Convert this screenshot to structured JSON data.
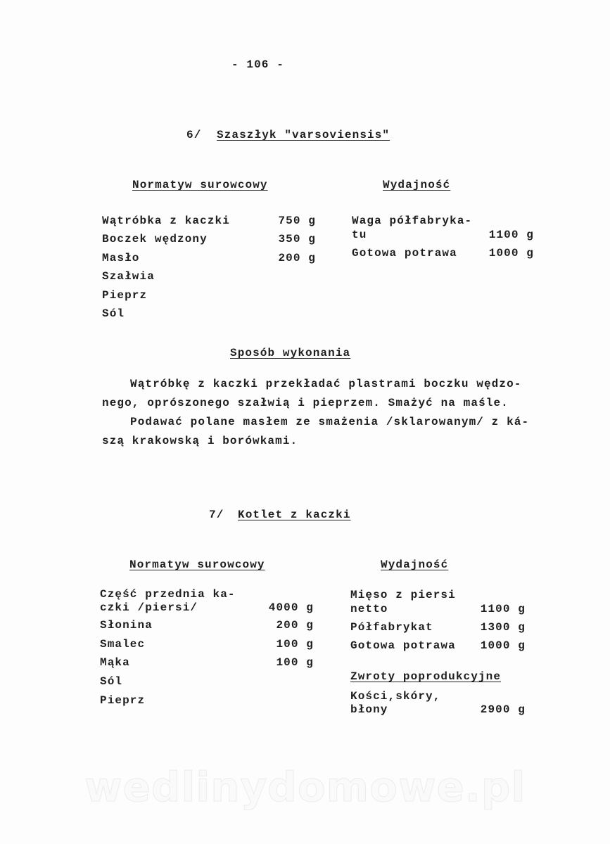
{
  "page_number": "- 106 -",
  "recipe1": {
    "number": "6/",
    "title": "Szaszłyk \"varsoviensis\"",
    "ingredients_header": "Normatyw surowcowy",
    "yield_header": "Wydajność",
    "ingredients": [
      {
        "name": "Wątróbka z kaczki",
        "amount": "750 g"
      },
      {
        "name": "Boczek wędzony",
        "amount": "350 g"
      },
      {
        "name": "Masło",
        "amount": "200 g"
      },
      {
        "name": "Szałwia",
        "amount": ""
      },
      {
        "name": "Pieprz",
        "amount": ""
      },
      {
        "name": "Sól",
        "amount": ""
      }
    ],
    "yield": [
      {
        "name_line1": "Waga półfabryka-",
        "name_line2": "tu",
        "amount": "1100 g"
      },
      {
        "name": "Gotowa potrawa",
        "amount": "1000 g"
      }
    ],
    "method_header": "Sposób wykonania",
    "method_lines": [
      "Wątróbkę z kaczki przekładać plastrami boczku wędzo-",
      "nego, oprószonego szałwią i pieprzem. Smażyć na maśle.",
      "Podawać polane masłem ze smażenia /sklarowanym/ z ká-",
      "szą krakowską i borówkami."
    ]
  },
  "recipe2": {
    "number": "7/",
    "title": "Kotlet z kaczki",
    "ingredients_header": "Normatyw surowcowy",
    "yield_header": "Wydajność",
    "ingredients": [
      {
        "name_line1": "Część przednia ka-",
        "name_line2": "czki /piersi/",
        "amount": "4000 g"
      },
      {
        "name": "Słonina",
        "amount": "200 g"
      },
      {
        "name": "Smalec",
        "amount": "100 g"
      },
      {
        "name": "Mąka",
        "amount": "100 g"
      },
      {
        "name": "Sól",
        "amount": ""
      },
      {
        "name": "Pieprz",
        "amount": ""
      }
    ],
    "yield": [
      {
        "name_line1": "Mięso z piersi",
        "name_line2": "netto",
        "amount": "1100 g"
      },
      {
        "name": "Półfabrykat",
        "amount": "1300 g"
      },
      {
        "name": "Gotowa potrawa",
        "amount": "1000 g"
      }
    ],
    "returns_header": "Zwroty poprodukcyjne",
    "returns": [
      {
        "name_line1": "Kości,skóry,",
        "name_line2": "błony",
        "amount": "2900 g"
      }
    ]
  },
  "watermark": "wedlinydomowe.pl"
}
